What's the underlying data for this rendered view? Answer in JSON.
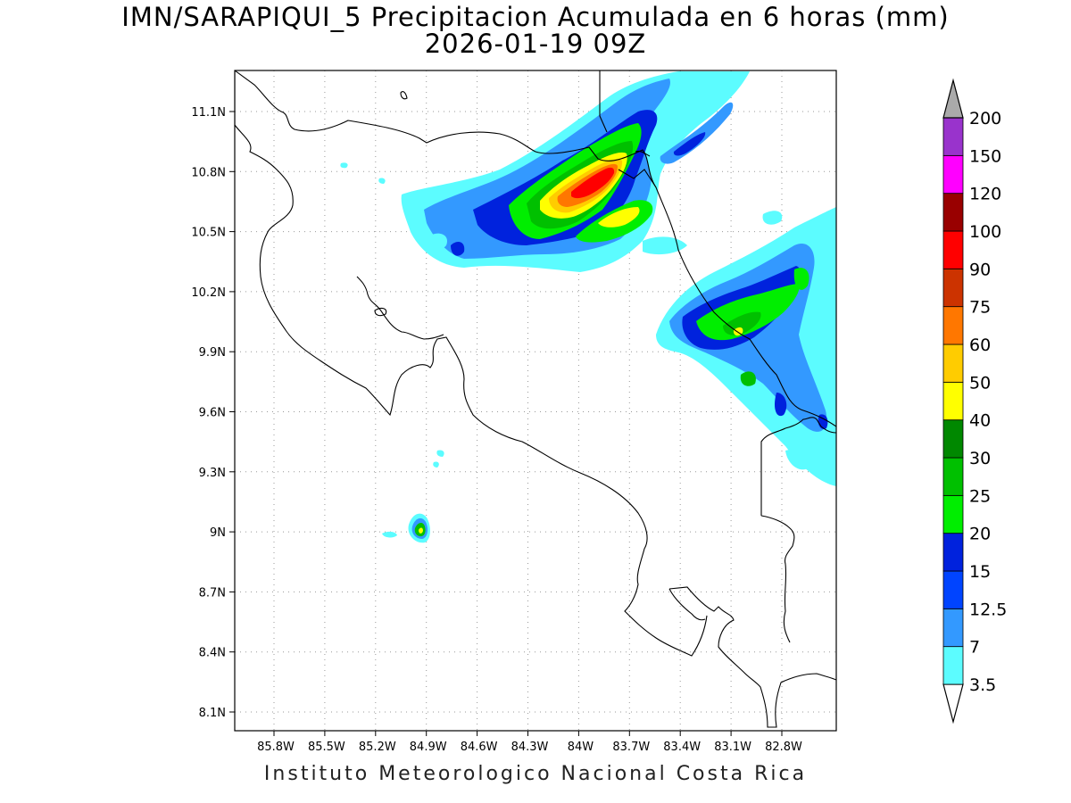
{
  "title": {
    "line1": "IMN/SARAPIQUI_5 Precipitacion Acumulada en 6 horas (mm)",
    "line2": "2026-01-19 09Z"
  },
  "footer": "Instituto Meteorologico Nacional Costa Rica",
  "axes": {
    "lon_ticks": [
      "85.8W",
      "85.5W",
      "85.2W",
      "84.9W",
      "84.6W",
      "84.3W",
      "84W",
      "83.7W",
      "83.4W",
      "83.1W",
      "82.8W"
    ],
    "lat_ticks": [
      "11.1N",
      "10.8N",
      "10.5N",
      "10.2N",
      "9.9N",
      "9.6N",
      "9.3N",
      "9N",
      "8.7N",
      "8.4N",
      "8.1N"
    ]
  },
  "colorbar": {
    "levels": [
      "3.5",
      "7",
      "12.5",
      "15",
      "20",
      "25",
      "30",
      "40",
      "50",
      "60",
      "75",
      "90",
      "100",
      "120",
      "150",
      "200"
    ],
    "colors": [
      "#5cfcff",
      "#3399ff",
      "#0044ff",
      "#0022dd",
      "#00ee00",
      "#00c000",
      "#008800",
      "#ffff00",
      "#ffcc00",
      "#ff7700",
      "#cc3300",
      "#ff0000",
      "#990000",
      "#ff00ff",
      "#9933cc",
      "#eeeeee",
      "#aaaaaa"
    ]
  },
  "icons": {
    "map": "costa-rica-coastline"
  }
}
